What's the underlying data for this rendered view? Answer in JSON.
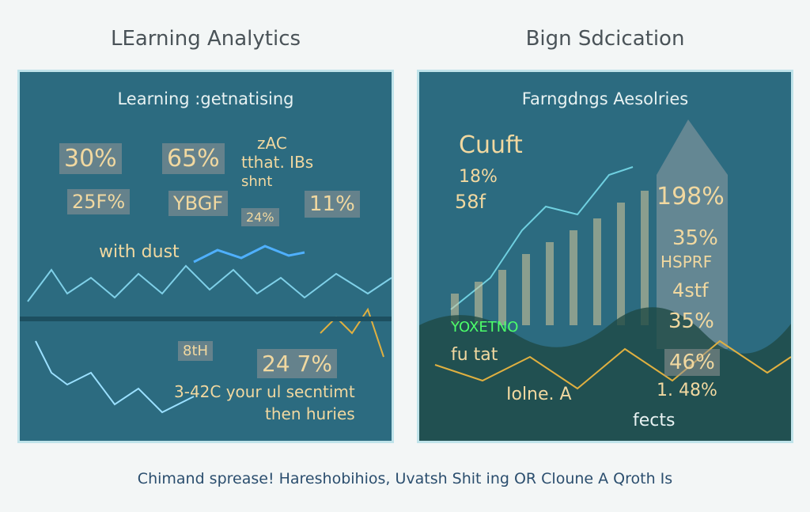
{
  "panels": [
    {
      "header": "LEarning Analytics",
      "title": "Learning :getnatising",
      "labels": [
        "30%",
        "65%",
        "25F%",
        "YBGF",
        "zAC",
        "tthat. IBs",
        "shnt",
        "24%",
        "11%",
        "with dust",
        "8tH",
        "24 7%",
        "3-42C your ul secntimt",
        "then huries"
      ]
    },
    {
      "header": "Bign Sdcication",
      "title": "Farngdngs Aesolries",
      "labels": [
        "Cuuft",
        "18%",
        "58f",
        "198%",
        "35%",
        "HSPRF",
        "4stf",
        "35%",
        "YOXETNO",
        "fu tat",
        "46%",
        "Iolne. A",
        "1. 48%",
        "fects"
      ]
    }
  ],
  "footer": "Chimand sprease! Hareshobihios, Uvatsh Shit ing OR Cloune A Qroth Is"
}
